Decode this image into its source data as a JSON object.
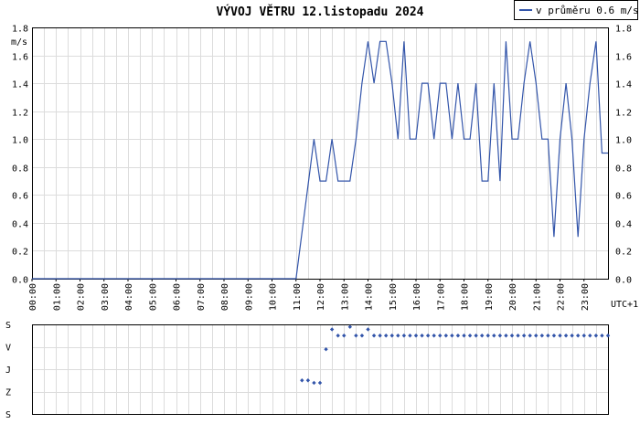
{
  "chart_data": [
    {
      "type": "line",
      "title": "VÝVOJ VĚTRU  12.listopadu 2024",
      "ylabel": "m/s",
      "xlabel": "UTC+1",
      "ylim": [
        0,
        1.8
      ],
      "grid": true,
      "legend": {
        "placement": "top-right",
        "label": "v průměru 0.6 m/s"
      },
      "yticks": [
        "0.0",
        "0.2",
        "0.4",
        "0.6",
        "0.8",
        "1.0",
        "1.2",
        "1.4",
        "1.6",
        "1.8"
      ],
      "xticks": [
        "00:00",
        "01:00",
        "02:00",
        "03:00",
        "04:00",
        "05:00",
        "06:00",
        "07:00",
        "08:00",
        "09:00",
        "10:00",
        "11:00",
        "12:00",
        "13:00",
        "14:00",
        "15:00",
        "16:00",
        "17:00",
        "18:00",
        "19:00",
        "20:00",
        "21:00",
        "22:00",
        "23:00"
      ],
      "series": [
        {
          "name": "v průměru 0.6 m/s",
          "color": "#3355aa",
          "x": [
            0,
            11,
            11.75,
            12,
            12.25,
            12.5,
            12.75,
            13,
            13.25,
            13.5,
            13.75,
            14,
            14.25,
            14.5,
            14.75,
            15,
            15.25,
            15.5,
            15.75,
            16,
            16.25,
            16.5,
            16.75,
            17,
            17.25,
            17.5,
            17.75,
            18,
            18.25,
            18.5,
            18.75,
            19,
            19.25,
            19.5,
            19.75,
            20,
            20.25,
            20.5,
            20.75,
            21,
            21.25,
            21.5,
            21.75,
            22,
            22.25,
            22.5,
            22.75,
            23,
            23.25,
            23.5,
            23.75,
            24
          ],
          "values": [
            0,
            0,
            1.0,
            0.7,
            0.7,
            1.0,
            0.7,
            0.7,
            0.7,
            1.0,
            1.4,
            1.7,
            1.4,
            1.7,
            1.7,
            1.4,
            1.0,
            1.7,
            1.0,
            1.0,
            1.4,
            1.4,
            1.0,
            1.4,
            1.4,
            1.0,
            1.4,
            1.0,
            1.0,
            1.4,
            0.7,
            0.7,
            1.4,
            0.7,
            1.7,
            1.0,
            1.0,
            1.4,
            1.7,
            1.4,
            1.0,
            1.0,
            0.3,
            1.0,
            1.4,
            1.0,
            0.3,
            1.0,
            1.4,
            1.7,
            0.9,
            0.9
          ]
        }
      ]
    },
    {
      "type": "scatter",
      "yticks": [
        "S",
        "V",
        "J",
        "Z",
        "S"
      ],
      "grid": true,
      "series": [
        {
          "name": "směr",
          "color": "#3355aa",
          "x": [
            11.25,
            11.5,
            11.75,
            12,
            12.25,
            12.5,
            12.75,
            13,
            13.25,
            13.5,
            13.75,
            14,
            14.25,
            14.5,
            14.75,
            15,
            15.25,
            15.5,
            15.75,
            16,
            16.25,
            16.5,
            16.75,
            17,
            17.25,
            17.5,
            17.75,
            18,
            18.25,
            18.5,
            18.75,
            19,
            19.25,
            19.5,
            19.75,
            20,
            20.25,
            20.5,
            20.75,
            21,
            21.25,
            21.5,
            21.75,
            22,
            22.25,
            22.5,
            22.75,
            23,
            23.25,
            23.5,
            23.75,
            24
          ],
          "values": [
            225,
            225,
            235,
            235,
            100,
            20,
            45,
            45,
            10,
            45,
            45,
            20,
            45,
            45,
            45,
            45,
            45,
            45,
            45,
            45,
            45,
            45,
            45,
            45,
            45,
            45,
            45,
            45,
            45,
            45,
            45,
            45,
            45,
            45,
            45,
            45,
            45,
            45,
            45,
            45,
            45,
            45,
            45,
            45,
            45,
            45,
            45,
            45,
            45,
            45,
            45,
            45
          ]
        }
      ]
    }
  ]
}
